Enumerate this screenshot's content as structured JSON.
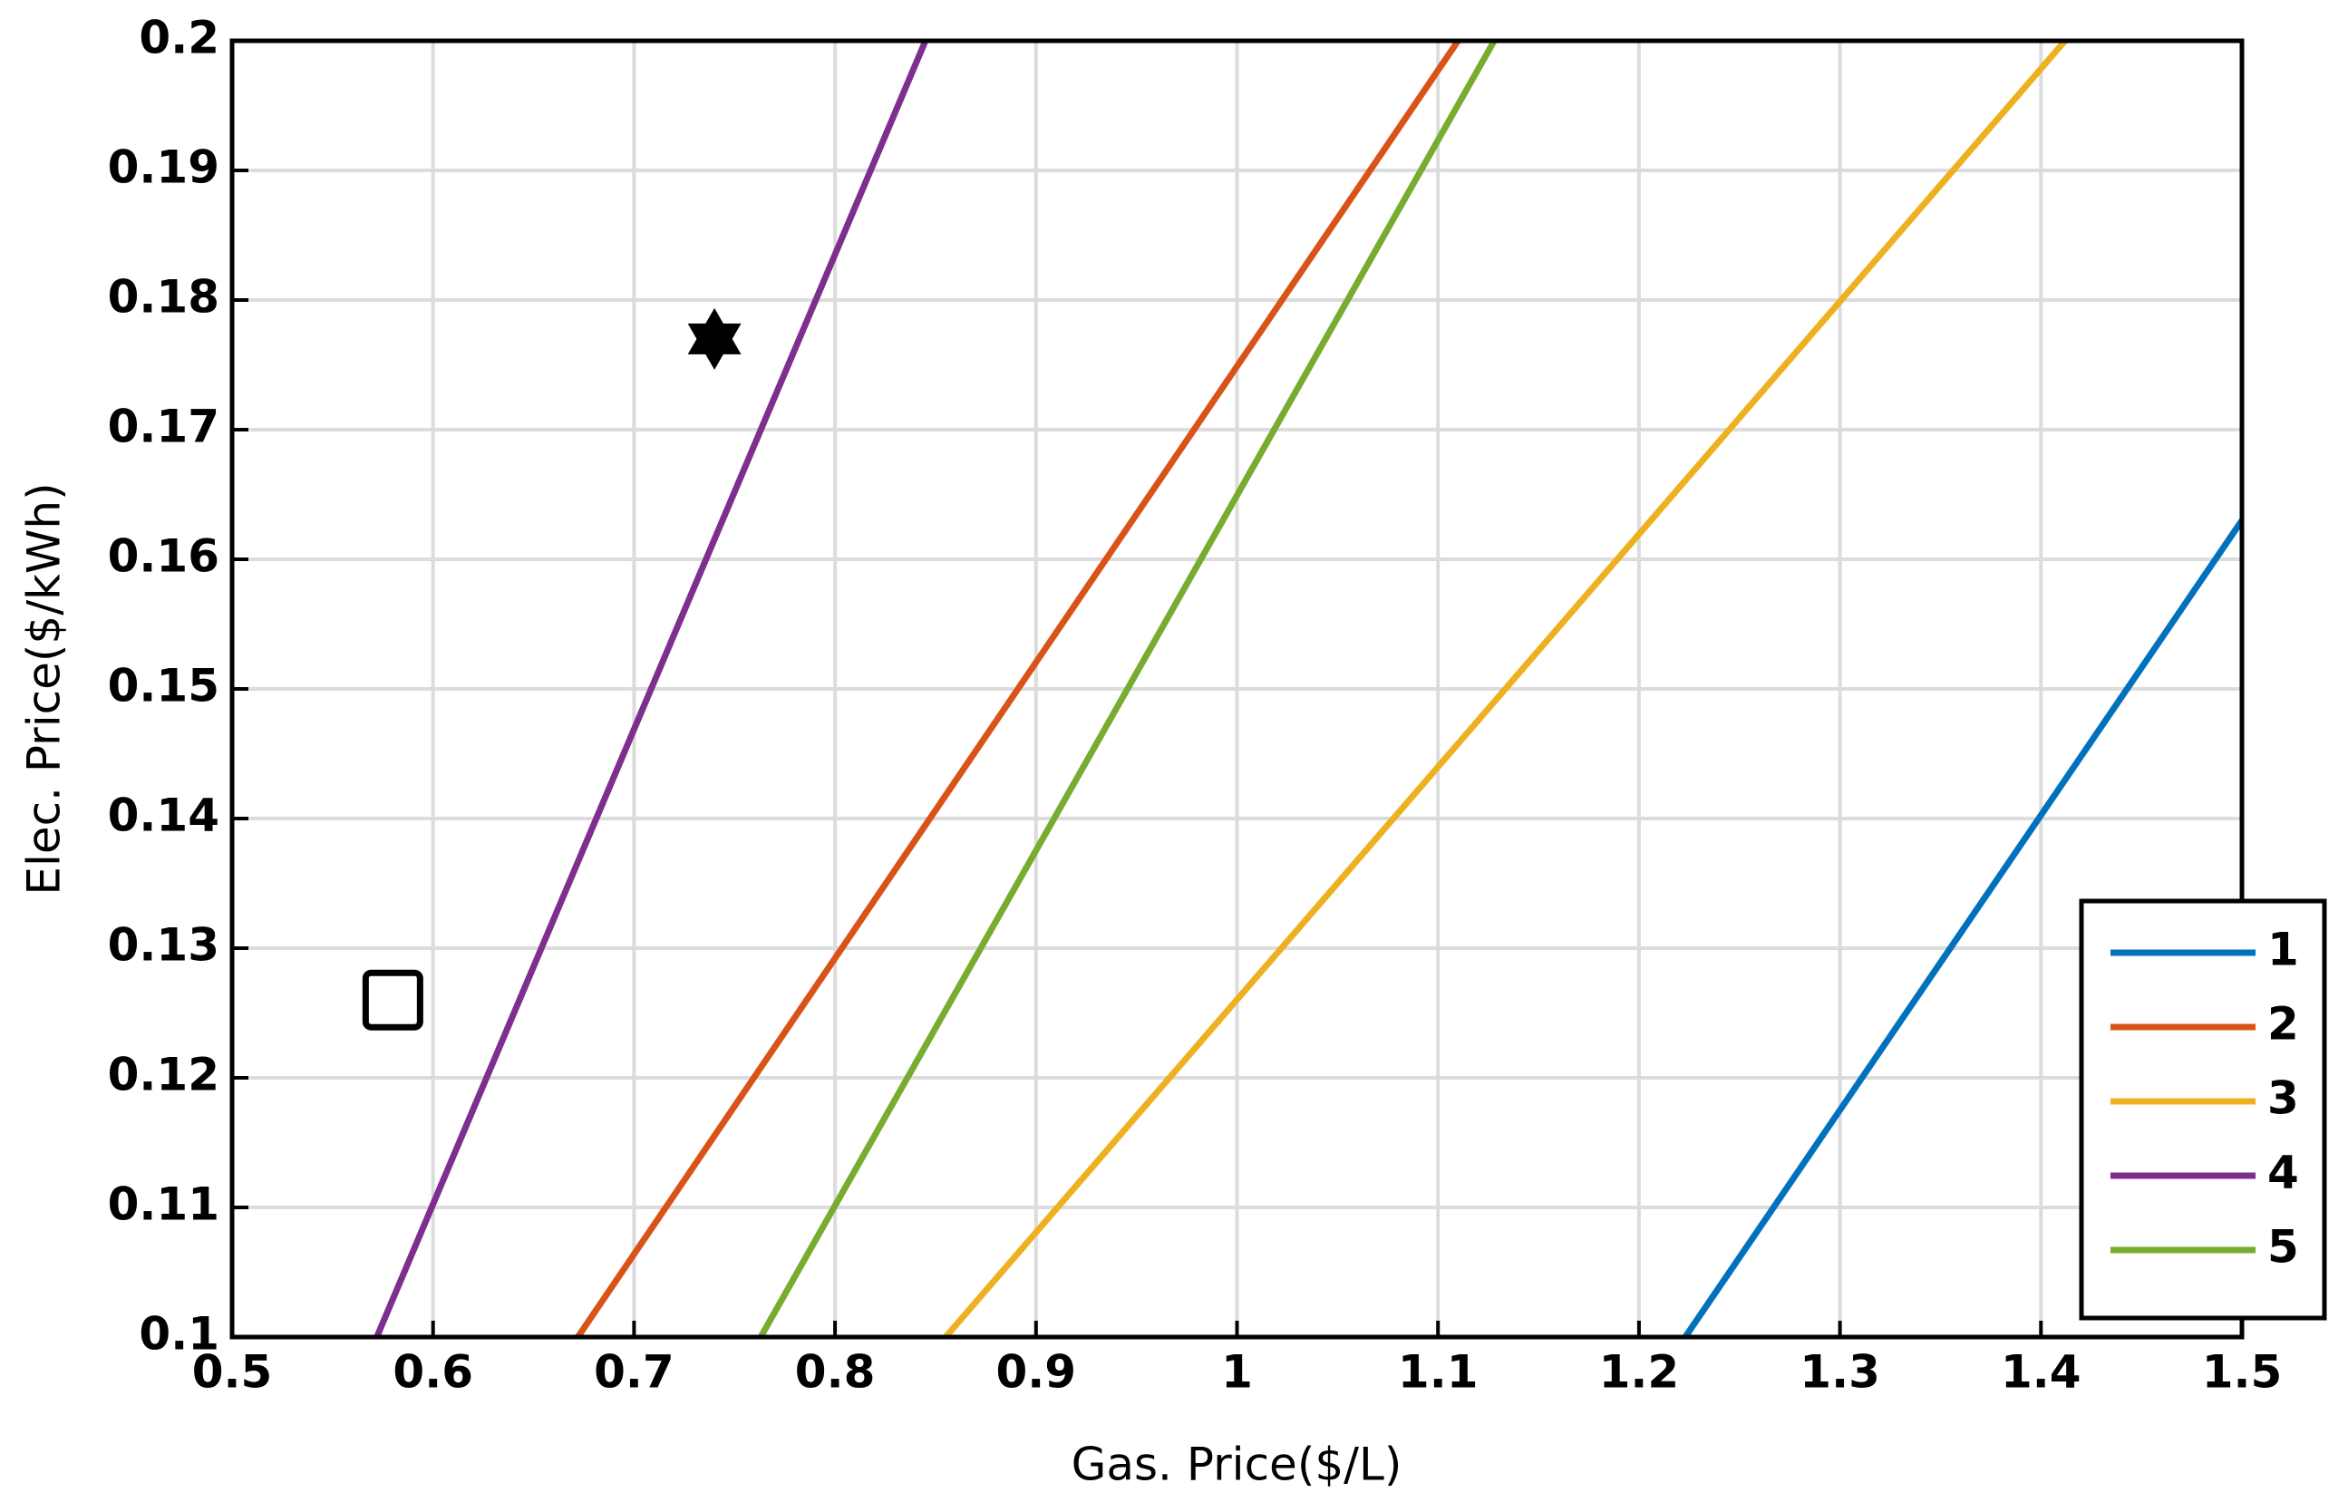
{
  "chart_data": {
    "type": "line",
    "xlabel": "Gas. Price($/L)",
    "ylabel": "Elec. Price($/kWh)",
    "xlim": [
      0.5,
      1.5
    ],
    "ylim": [
      0.1,
      0.2
    ],
    "xticks": [
      0.5,
      0.6,
      0.7,
      0.8,
      0.9,
      1,
      1.1,
      1.2,
      1.3,
      1.4,
      1.5
    ],
    "yticks": [
      0.1,
      0.11,
      0.12,
      0.13,
      0.14,
      0.15,
      0.16,
      0.17,
      0.18,
      0.19,
      0.2
    ],
    "grid": true,
    "legend": "lower right",
    "series": [
      {
        "name": "1",
        "color": "#0072BD",
        "x": [
          1.223,
          1.5
        ],
        "values": [
          0.1,
          0.163
        ]
      },
      {
        "name": "2",
        "color": "#D95319",
        "x": [
          0.672,
          1.11
        ],
        "values": [
          0.1,
          0.2
        ]
      },
      {
        "name": "3",
        "color": "#EDB120",
        "x": [
          0.855,
          1.412
        ],
        "values": [
          0.1,
          0.2
        ]
      },
      {
        "name": "4",
        "color": "#7E2F8E",
        "x": [
          0.572,
          0.845
        ],
        "values": [
          0.1,
          0.2
        ]
      },
      {
        "name": "5",
        "color": "#77AC30",
        "x": [
          0.763,
          1.128
        ],
        "values": [
          0.1,
          0.2
        ]
      }
    ],
    "markers": [
      {
        "x": 0.58,
        "y": 0.126,
        "marker": "square"
      },
      {
        "x": 0.74,
        "y": 0.177,
        "marker": "hexagram"
      }
    ]
  }
}
